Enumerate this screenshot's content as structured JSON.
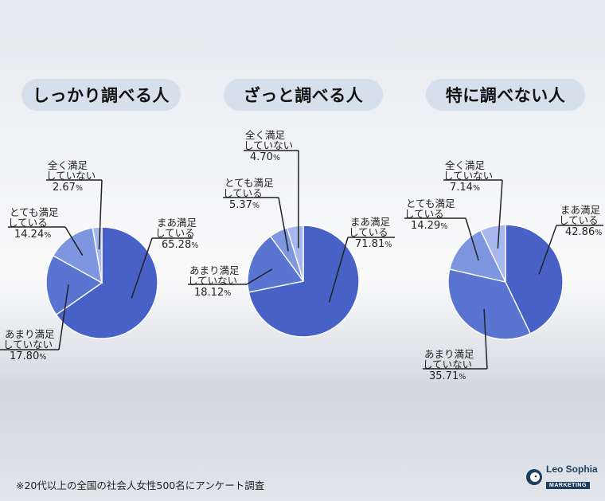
{
  "footnote": "※20代以上の全国の社会人女性500名にアンケート調査",
  "brand": {
    "name": "Leo Sophia",
    "sub": "MARKETING"
  },
  "colors": {
    "strong": "#4761c7",
    "light": "#7e95e0",
    "lighter": "#a4b6ef",
    "lightest": "#c7d2f5",
    "blue_main": "#4a63c8"
  },
  "chart_data": [
    {
      "type": "pie",
      "title": "しっかり調べる人",
      "slices": [
        {
          "label": "まあ満足している",
          "value": 65.28,
          "color": "#4761c7"
        },
        {
          "label": "あまり満足していない",
          "value": 17.8,
          "color": "#5a74d2"
        },
        {
          "label": "とても満足している",
          "value": 14.24,
          "color": "#7e95e0"
        },
        {
          "label": "全く満足していない",
          "value": 2.67,
          "color": "#a7b8ef"
        }
      ]
    },
    {
      "type": "pie",
      "title": "ざっと調べる人",
      "slices": [
        {
          "label": "まあ満足している",
          "value": 71.81,
          "color": "#4761c7"
        },
        {
          "label": "あまり満足していない",
          "value": 18.12,
          "color": "#5a74d2"
        },
        {
          "label": "とても満足している",
          "value": 5.37,
          "color": "#7e95e0"
        },
        {
          "label": "全く満足していない",
          "value": 4.7,
          "color": "#a7b8ef"
        }
      ]
    },
    {
      "type": "pie",
      "title": "特に調べない人",
      "slices": [
        {
          "label": "まあ満足している",
          "value": 42.86,
          "color": "#4761c7"
        },
        {
          "label": "あまり満足していない",
          "value": 35.71,
          "color": "#5a74d2"
        },
        {
          "label": "とても満足している",
          "value": 14.29,
          "color": "#7e95e0"
        },
        {
          "label": "全く満足していない",
          "value": 7.14,
          "color": "#a7b8ef"
        }
      ]
    }
  ]
}
